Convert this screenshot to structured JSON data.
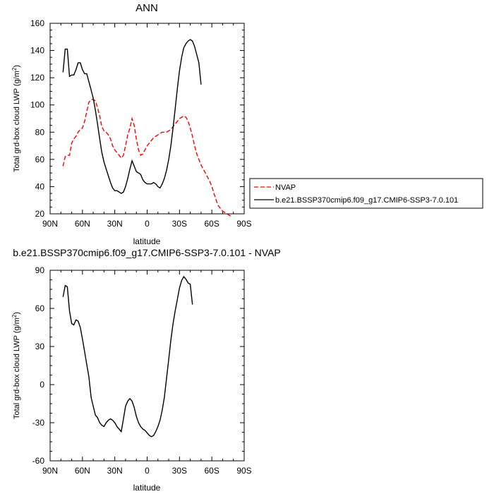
{
  "chart_data": [
    {
      "type": "line",
      "title": "ANN",
      "xlabel": "latitude",
      "ylabel": "Total grd-box cloud LWP (g/m",
      "ylabel_sup": "2",
      "ylabel_close": ")",
      "xlim": [
        90,
        -90
      ],
      "ylim": [
        20,
        160
      ],
      "x_ticks": [
        90,
        60,
        30,
        0,
        -30,
        -60,
        -90
      ],
      "x_tick_labels": [
        "90N",
        "60N",
        "30N",
        "0",
        "30S",
        "60S",
        "90S"
      ],
      "y_ticks": [
        20,
        40,
        60,
        80,
        100,
        120,
        140,
        160
      ],
      "y_tick_labels": [
        "20",
        "40",
        "60",
        "80",
        "100",
        "120",
        "140",
        "160"
      ],
      "legend_position": "right-outside",
      "series": [
        {
          "name": "NVAP",
          "color": "#ff0000",
          "style": "dashed",
          "points": [
            [
              78,
              55
            ],
            [
              76,
              62
            ],
            [
              74,
              63
            ],
            [
              72,
              63
            ],
            [
              70,
              72
            ],
            [
              68,
              75
            ],
            [
              66,
              77
            ],
            [
              64,
              80
            ],
            [
              62,
              82
            ],
            [
              60,
              83
            ],
            [
              58,
              88
            ],
            [
              56,
              95
            ],
            [
              54,
              102
            ],
            [
              52,
              104
            ],
            [
              50,
              104
            ],
            [
              48,
              103
            ],
            [
              46,
              98
            ],
            [
              44,
              92
            ],
            [
              42,
              84
            ],
            [
              40,
              81
            ],
            [
              38,
              80
            ],
            [
              36,
              78
            ],
            [
              34,
              75
            ],
            [
              32,
              70
            ],
            [
              30,
              67
            ],
            [
              28,
              65
            ],
            [
              26,
              63
            ],
            [
              24,
              61
            ],
            [
              22,
              63
            ],
            [
              20,
              70
            ],
            [
              18,
              78
            ],
            [
              16,
              83
            ],
            [
              14,
              90
            ],
            [
              12,
              85
            ],
            [
              10,
              75
            ],
            [
              8,
              67
            ],
            [
              6,
              63
            ],
            [
              4,
              64
            ],
            [
              2,
              67
            ],
            [
              0,
              70
            ],
            [
              -2,
              72
            ],
            [
              -4,
              74
            ],
            [
              -6,
              76
            ],
            [
              -8,
              77
            ],
            [
              -10,
              78
            ],
            [
              -12,
              79
            ],
            [
              -14,
              80
            ],
            [
              -16,
              80
            ],
            [
              -18,
              80
            ],
            [
              -20,
              81
            ],
            [
              -22,
              82
            ],
            [
              -24,
              84
            ],
            [
              -26,
              86
            ],
            [
              -28,
              88
            ],
            [
              -30,
              90
            ],
            [
              -32,
              91
            ],
            [
              -34,
              92
            ],
            [
              -36,
              91
            ],
            [
              -38,
              88
            ],
            [
              -40,
              83
            ],
            [
              -42,
              77
            ],
            [
              -44,
              70
            ],
            [
              -46,
              64
            ],
            [
              -48,
              60
            ],
            [
              -50,
              56
            ],
            [
              -52,
              53
            ],
            [
              -54,
              50
            ],
            [
              -56,
              47
            ],
            [
              -58,
              44
            ],
            [
              -60,
              40
            ],
            [
              -62,
              35
            ],
            [
              -64,
              30
            ],
            [
              -66,
              26
            ],
            [
              -68,
              24
            ],
            [
              -70,
              22
            ],
            [
              -72,
              21
            ],
            [
              -74,
              20
            ],
            [
              -76,
              19
            ],
            [
              -78,
              18
            ]
          ]
        },
        {
          "name": "b.e21.BSSP370cmip6.f09_g17.CMIP6-SSP3-7.0.101",
          "color": "#000000",
          "style": "solid",
          "points": [
            [
              78,
              124
            ],
            [
              76,
              141
            ],
            [
              74,
              141
            ],
            [
              72,
              121
            ],
            [
              70,
              122
            ],
            [
              68,
              122
            ],
            [
              66,
              126
            ],
            [
              64,
              131
            ],
            [
              62,
              131
            ],
            [
              60,
              126
            ],
            [
              58,
              123
            ],
            [
              56,
              123
            ],
            [
              54,
              117
            ],
            [
              52,
              111
            ],
            [
              50,
              105
            ],
            [
              48,
              96
            ],
            [
              46,
              86
            ],
            [
              44,
              75
            ],
            [
              42,
              65
            ],
            [
              40,
              58
            ],
            [
              38,
              53
            ],
            [
              36,
              48
            ],
            [
              34,
              43
            ],
            [
              32,
              39
            ],
            [
              30,
              37
            ],
            [
              28,
              37
            ],
            [
              26,
              36
            ],
            [
              24,
              35
            ],
            [
              22,
              36
            ],
            [
              20,
              40
            ],
            [
              18,
              46
            ],
            [
              16,
              53
            ],
            [
              14,
              59
            ],
            [
              12,
              55
            ],
            [
              10,
              51
            ],
            [
              8,
              50
            ],
            [
              6,
              49
            ],
            [
              4,
              45
            ],
            [
              2,
              43
            ],
            [
              0,
              42
            ],
            [
              -2,
              42
            ],
            [
              -4,
              42
            ],
            [
              -6,
              43
            ],
            [
              -8,
              42
            ],
            [
              -10,
              40
            ],
            [
              -12,
              39
            ],
            [
              -14,
              42
            ],
            [
              -16,
              46
            ],
            [
              -18,
              52
            ],
            [
              -20,
              60
            ],
            [
              -22,
              70
            ],
            [
              -24,
              83
            ],
            [
              -26,
              97
            ],
            [
              -28,
              112
            ],
            [
              -30,
              125
            ],
            [
              -32,
              135
            ],
            [
              -34,
              142
            ],
            [
              -36,
              145
            ],
            [
              -38,
              147
            ],
            [
              -40,
              148
            ],
            [
              -42,
              147
            ],
            [
              -44,
              143
            ],
            [
              -46,
              137
            ],
            [
              -48,
              131
            ],
            [
              -50,
              115
            ]
          ]
        }
      ]
    },
    {
      "type": "line",
      "title": "b.e21.BSSP370cmip6.f09_g17.CMIP6-SSP3-7.0.101 - NVAP",
      "xlabel": "latitude",
      "ylabel": "Total grd-box cloud LWP (g/m",
      "ylabel_sup": "2",
      "ylabel_close": ")",
      "xlim": [
        90,
        -90
      ],
      "ylim": [
        -60,
        90
      ],
      "x_ticks": [
        90,
        60,
        30,
        0,
        -30,
        -60,
        -90
      ],
      "x_tick_labels": [
        "90N",
        "60N",
        "30N",
        "0",
        "30S",
        "60S",
        "90S"
      ],
      "y_ticks": [
        -60,
        -30,
        0,
        30,
        60,
        90
      ],
      "y_tick_labels": [
        "-60",
        "-30",
        "0",
        "30",
        "60",
        "90"
      ],
      "series": [
        {
          "color": "#000000",
          "style": "solid",
          "points": [
            [
              78,
              69
            ],
            [
              76,
              78
            ],
            [
              74,
              77
            ],
            [
              72,
              58
            ],
            [
              70,
              48
            ],
            [
              68,
              47
            ],
            [
              66,
              51
            ],
            [
              64,
              50
            ],
            [
              62,
              45
            ],
            [
              60,
              36
            ],
            [
              58,
              26
            ],
            [
              56,
              16
            ],
            [
              54,
              6
            ],
            [
              52,
              -10
            ],
            [
              50,
              -17
            ],
            [
              48,
              -24
            ],
            [
              46,
              -26
            ],
            [
              44,
              -30
            ],
            [
              42,
              -32
            ],
            [
              40,
              -33
            ],
            [
              38,
              -30
            ],
            [
              36,
              -28
            ],
            [
              34,
              -27
            ],
            [
              32,
              -28
            ],
            [
              30,
              -30
            ],
            [
              28,
              -33
            ],
            [
              26,
              -35
            ],
            [
              24,
              -37
            ],
            [
              22,
              -27
            ],
            [
              20,
              -17
            ],
            [
              18,
              -13
            ],
            [
              16,
              -11
            ],
            [
              14,
              -13
            ],
            [
              12,
              -18
            ],
            [
              10,
              -25
            ],
            [
              8,
              -30
            ],
            [
              6,
              -33
            ],
            [
              4,
              -35
            ],
            [
              2,
              -36
            ],
            [
              0,
              -38
            ],
            [
              -2,
              -40
            ],
            [
              -4,
              -41
            ],
            [
              -6,
              -40
            ],
            [
              -8,
              -37
            ],
            [
              -10,
              -33
            ],
            [
              -12,
              -28
            ],
            [
              -14,
              -20
            ],
            [
              -16,
              -10
            ],
            [
              -18,
              5
            ],
            [
              -20,
              20
            ],
            [
              -22,
              35
            ],
            [
              -24,
              48
            ],
            [
              -26,
              58
            ],
            [
              -28,
              67
            ],
            [
              -30,
              76
            ],
            [
              -32,
              82
            ],
            [
              -34,
              85
            ],
            [
              -36,
              83
            ],
            [
              -38,
              80
            ],
            [
              -40,
              79
            ],
            [
              -42,
              63
            ]
          ]
        }
      ]
    }
  ]
}
